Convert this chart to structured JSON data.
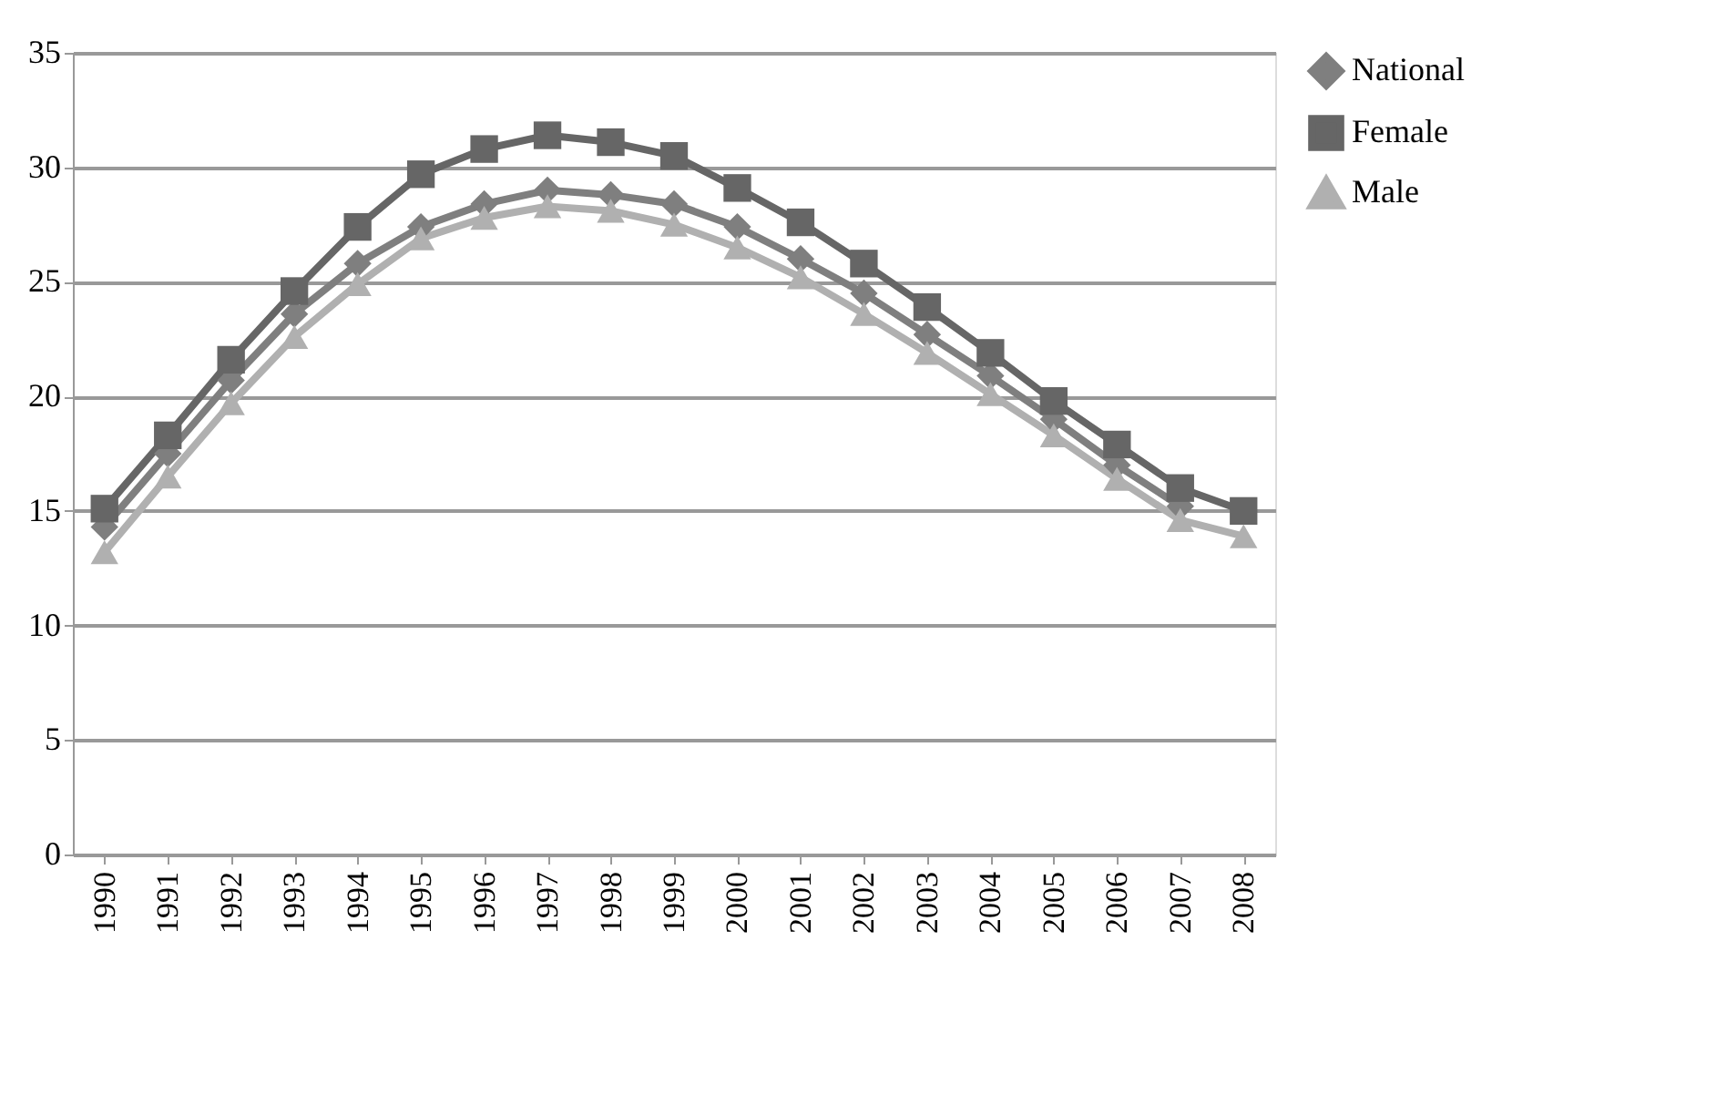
{
  "chart_data": {
    "type": "line",
    "categories": [
      "1990",
      "1991",
      "1992",
      "1993",
      "1994",
      "1995",
      "1996",
      "1997",
      "1998",
      "1999",
      "2000",
      "2001",
      "2002",
      "2003",
      "2004",
      "2005",
      "2006",
      "2007",
      "2008"
    ],
    "series": [
      {
        "name": "National",
        "color": "#7f7f7f",
        "marker": "diamond",
        "values": [
          14.3,
          17.5,
          20.7,
          23.6,
          25.8,
          27.4,
          28.4,
          29.0,
          28.8,
          28.4,
          27.4,
          26.0,
          24.5,
          22.7,
          20.9,
          19.0,
          17.0,
          15.2,
          null
        ]
      },
      {
        "name": "Female",
        "color": "#666666",
        "marker": "square",
        "values": [
          15.1,
          18.3,
          21.6,
          24.6,
          27.4,
          29.7,
          30.8,
          31.4,
          31.1,
          30.5,
          29.1,
          27.6,
          25.8,
          23.9,
          21.9,
          19.8,
          17.9,
          16.0,
          15.0
        ]
      },
      {
        "name": "Male",
        "color": "#b0b0b0",
        "marker": "triangle",
        "values": [
          13.2,
          16.5,
          19.7,
          22.6,
          24.9,
          26.9,
          27.8,
          28.3,
          28.1,
          27.5,
          26.5,
          25.2,
          23.6,
          21.9,
          20.1,
          18.3,
          16.4,
          14.6,
          13.9
        ]
      }
    ],
    "ylim": [
      0,
      35
    ],
    "yticks": [
      0,
      5,
      10,
      15,
      20,
      25,
      30,
      35
    ],
    "grid": "y",
    "legend": "right",
    "line_style": "solid"
  }
}
